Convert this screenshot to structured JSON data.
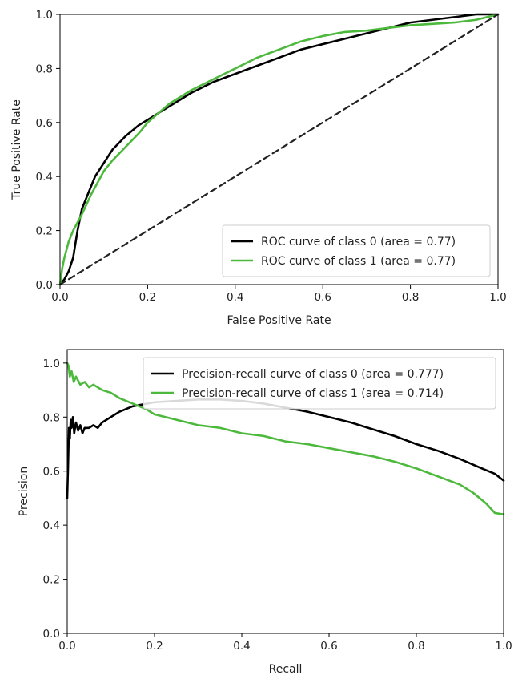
{
  "chart_data": [
    {
      "type": "line",
      "xlabel": "False Positive Rate",
      "ylabel": "True Positive Rate",
      "xlim": [
        0,
        1
      ],
      "ylim": [
        0,
        1
      ],
      "xticks": [
        "0.0",
        "0.2",
        "0.4",
        "0.6",
        "0.8",
        "1.0"
      ],
      "yticks": [
        "0.0",
        "0.2",
        "0.4",
        "0.6",
        "0.8",
        "1.0"
      ],
      "grid": false,
      "legend_position": "lower-right",
      "series": [
        {
          "name": "ROC curve of class 0 (area = 0.77)",
          "color": "#000000",
          "x": [
            0,
            0.01,
            0.02,
            0.03,
            0.04,
            0.05,
            0.06,
            0.08,
            0.1,
            0.12,
            0.15,
            0.18,
            0.2,
            0.25,
            0.3,
            0.35,
            0.4,
            0.45,
            0.5,
            0.55,
            0.6,
            0.65,
            0.7,
            0.75,
            0.8,
            0.85,
            0.9,
            0.95,
            1.0
          ],
          "y": [
            0,
            0.02,
            0.05,
            0.1,
            0.2,
            0.28,
            0.32,
            0.4,
            0.45,
            0.5,
            0.55,
            0.59,
            0.61,
            0.66,
            0.71,
            0.75,
            0.78,
            0.81,
            0.84,
            0.87,
            0.89,
            0.91,
            0.93,
            0.95,
            0.97,
            0.98,
            0.99,
            1.0,
            1.0
          ]
        },
        {
          "name": "ROC curve of class 1 (area = 0.77)",
          "color": "#4cb93c",
          "x": [
            0,
            0.005,
            0.01,
            0.02,
            0.03,
            0.05,
            0.07,
            0.1,
            0.12,
            0.15,
            0.18,
            0.2,
            0.25,
            0.3,
            0.35,
            0.4,
            0.45,
            0.5,
            0.55,
            0.6,
            0.65,
            0.7,
            0.75,
            0.8,
            0.85,
            0.9,
            0.95,
            1.0
          ],
          "y": [
            0,
            0.06,
            0.1,
            0.16,
            0.2,
            0.26,
            0.33,
            0.42,
            0.46,
            0.51,
            0.56,
            0.6,
            0.67,
            0.72,
            0.76,
            0.8,
            0.84,
            0.87,
            0.9,
            0.92,
            0.935,
            0.94,
            0.95,
            0.96,
            0.965,
            0.97,
            0.98,
            1.0
          ]
        },
        {
          "color": "#222222",
          "style": "dashed",
          "x": [
            0,
            1
          ],
          "y": [
            0,
            1
          ]
        }
      ]
    },
    {
      "type": "line",
      "xlabel": "Recall",
      "ylabel": "Precision",
      "xlim": [
        0,
        1
      ],
      "ylim": [
        0,
        1.05
      ],
      "xticks": [
        "0.0",
        "0.2",
        "0.4",
        "0.6",
        "0.8",
        "1.0"
      ],
      "yticks": [
        "0.0",
        "0.2",
        "0.4",
        "0.6",
        "0.8",
        "1.0"
      ],
      "grid": false,
      "legend_position": "upper-right",
      "series": [
        {
          "name": "Precision-recall curve of class 0 (area = 0.777)",
          "color": "#000000",
          "x": [
            0.0,
            0.002,
            0.004,
            0.006,
            0.008,
            0.01,
            0.013,
            0.016,
            0.02,
            0.025,
            0.03,
            0.035,
            0.04,
            0.05,
            0.06,
            0.07,
            0.08,
            0.1,
            0.12,
            0.15,
            0.2,
            0.25,
            0.3,
            0.35,
            0.4,
            0.45,
            0.5,
            0.55,
            0.6,
            0.65,
            0.7,
            0.75,
            0.8,
            0.85,
            0.9,
            0.95,
            0.98,
            1.0
          ],
          "y": [
            0.5,
            0.62,
            0.76,
            0.72,
            0.79,
            0.76,
            0.8,
            0.74,
            0.78,
            0.75,
            0.77,
            0.74,
            0.76,
            0.76,
            0.77,
            0.76,
            0.78,
            0.8,
            0.82,
            0.84,
            0.855,
            0.86,
            0.865,
            0.865,
            0.86,
            0.85,
            0.835,
            0.82,
            0.8,
            0.78,
            0.755,
            0.73,
            0.7,
            0.675,
            0.645,
            0.61,
            0.59,
            0.565
          ]
        },
        {
          "name": "Precision-recall curve of class 1 (area = 0.714)",
          "color": "#4cb93c",
          "x": [
            0.0,
            0.003,
            0.006,
            0.01,
            0.015,
            0.02,
            0.03,
            0.04,
            0.05,
            0.06,
            0.08,
            0.1,
            0.12,
            0.15,
            0.18,
            0.2,
            0.25,
            0.3,
            0.35,
            0.4,
            0.45,
            0.5,
            0.55,
            0.6,
            0.65,
            0.7,
            0.75,
            0.8,
            0.85,
            0.9,
            0.93,
            0.96,
            0.98,
            1.0
          ],
          "y": [
            1.0,
            0.99,
            0.95,
            0.97,
            0.93,
            0.95,
            0.92,
            0.93,
            0.91,
            0.92,
            0.9,
            0.89,
            0.87,
            0.85,
            0.83,
            0.81,
            0.79,
            0.77,
            0.76,
            0.74,
            0.73,
            0.71,
            0.7,
            0.685,
            0.67,
            0.655,
            0.635,
            0.61,
            0.58,
            0.55,
            0.52,
            0.48,
            0.445,
            0.44
          ]
        }
      ]
    }
  ]
}
